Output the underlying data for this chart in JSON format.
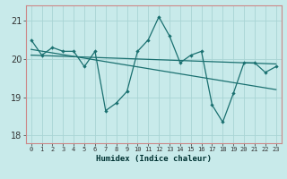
{
  "x": [
    0,
    1,
    2,
    3,
    4,
    5,
    6,
    7,
    8,
    9,
    10,
    11,
    12,
    13,
    14,
    15,
    16,
    17,
    18,
    19,
    20,
    21,
    22,
    23
  ],
  "y": [
    20.5,
    20.1,
    20.3,
    20.2,
    20.2,
    19.8,
    20.2,
    18.65,
    18.85,
    19.15,
    20.2,
    20.5,
    21.1,
    20.6,
    19.9,
    20.1,
    20.2,
    18.8,
    18.35,
    19.1,
    19.9,
    19.9,
    19.65,
    19.8
  ],
  "trend1_x": [
    0,
    23
  ],
  "trend1_y": [
    20.1,
    19.87
  ],
  "trend2_x": [
    0,
    23
  ],
  "trend2_y": [
    20.25,
    19.2
  ],
  "bg_color": "#c8eaea",
  "grid_color": "#a8d4d4",
  "line_color": "#1a7070",
  "trend_color": "#1a7070",
  "spine_color": "#cc8888",
  "ylabel_ticks": [
    18,
    19,
    20,
    21
  ],
  "xlim": [
    -0.5,
    23.5
  ],
  "ylim": [
    17.8,
    21.4
  ],
  "xlabel": "Humidex (Indice chaleur)",
  "xtick_labels": [
    "0",
    "1",
    "2",
    "3",
    "4",
    "5",
    "6",
    "7",
    "8",
    "9",
    "10",
    "11",
    "12",
    "13",
    "14",
    "15",
    "16",
    "17",
    "18",
    "19",
    "20",
    "21",
    "22",
    "23"
  ]
}
